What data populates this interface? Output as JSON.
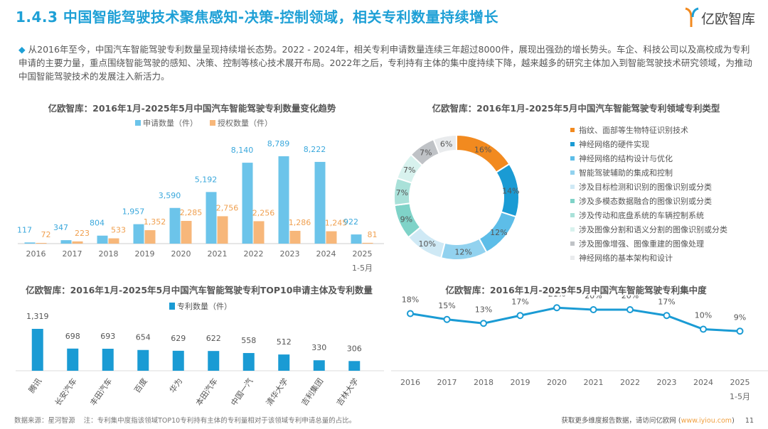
{
  "header": {
    "title": "1.4.3 中国智能驾驶技术聚焦感知-决策-控制领域，相关专利数量持续增长",
    "logo": "亿欧智库"
  },
  "intro": "从2016年至今，中国汽车智能驾驶专利数量呈现持续增长态势。2022 - 2024年，相关专利申请数量连续三年超过8000件，展现出强劲的增长势头。车企、科技公司以及高校成为专利申请的主要力量，重点围绕智能驾驶的感知、决策、控制等核心技术展开布局。2022年之后，专利持有主体的集中度持续下降，越来越多的研究主体加入到智能驾驶技术研究领域，为推动中国智能驾驶技术的发展注入新活力。",
  "chart_data": [
    {
      "type": "bar",
      "title": "亿欧智库：2016年1月-2025年5月中国汽车智能驾驶专利数量变化趋势",
      "categories": [
        "2016",
        "2017",
        "2018",
        "2019",
        "2020",
        "2021",
        "2022",
        "2023",
        "2024",
        "2025\n1-5月"
      ],
      "series": [
        {
          "name": "申请数量（件）",
          "color": "#6cc4ea",
          "values": [
            117,
            347,
            804,
            1957,
            3590,
            5192,
            8140,
            8789,
            8222,
            922
          ],
          "labels": [
            "117",
            "347",
            "804",
            "1,957",
            "3,590",
            "5,192",
            "8,140",
            "8,789",
            "8,222",
            "922"
          ]
        },
        {
          "name": "授权数量（件）",
          "color": "#f7b77a",
          "values": [
            72,
            223,
            533,
            1352,
            2285,
            2756,
            2256,
            1286,
            1245,
            81
          ],
          "labels": [
            "72",
            "223",
            "533",
            "1,352",
            "2,285",
            "2,756",
            "2,256",
            "1,286",
            "1,245",
            "81"
          ]
        }
      ],
      "legend": "top",
      "grid": false
    },
    {
      "type": "pie",
      "donut": true,
      "title": "亿欧智库：2016年1月-2025年5月中国汽车智能驾驶专利领域专利类型",
      "legend": "right",
      "slices": [
        {
          "label": "指纹、面部等生物特征识别技术",
          "value": 16,
          "color": "#f28a1f"
        },
        {
          "label": "神经网络的硬件实现",
          "value": 14,
          "color": "#1a9bd4"
        },
        {
          "label": "神经网络的结构设计与优化",
          "value": 12,
          "color": "#5dbde8"
        },
        {
          "label": "智能驾驶辅助的集成和控制",
          "value": 12,
          "color": "#92d2ef"
        },
        {
          "label": "涉及目标检测和识别的图像识别或分类",
          "value": 10,
          "color": "#cfe9f5"
        },
        {
          "label": "涉及多模态数据融合的图像识别或分类",
          "value": 9,
          "color": "#7fd3c8"
        },
        {
          "label": "涉及传动和底盘系统的车辆控制系统",
          "value": 7,
          "color": "#a9e1d9"
        },
        {
          "label": "涉及图像分割和语义分割的图像识别或分类",
          "value": 7,
          "color": "#d8f2ee"
        },
        {
          "label": "涉及图像增强、图像重建的图像处理",
          "value": 7,
          "color": "#bfc2c6"
        },
        {
          "label": "神经网络的基本架构和设计",
          "value": 6,
          "color": "#e9ebed"
        }
      ]
    },
    {
      "type": "bar",
      "title": "亿欧智库：2016年1月-2025年5月中国汽车智能驾驶专利TOP10申请主体及专利数量",
      "legend": "top",
      "categories": [
        "腾讯",
        "长安汽车",
        "丰田汽车",
        "百度",
        "华为",
        "本田汽车",
        "中国一汽",
        "清华大学",
        "吉利集团",
        "吉林大学"
      ],
      "series": [
        {
          "name": "专利数量（件）",
          "color": "#1a9bd4",
          "values": [
            1319,
            698,
            693,
            654,
            629,
            622,
            558,
            512,
            330,
            306
          ],
          "labels": [
            "1,319",
            "698",
            "693",
            "654",
            "629",
            "622",
            "558",
            "512",
            "330",
            "306"
          ]
        }
      ]
    },
    {
      "type": "line",
      "title": "亿欧智库：2016年1月-2025年5月中国汽车智能驾驶专利集中度",
      "categories": [
        "2016",
        "2017",
        "2018",
        "2019",
        "2020",
        "2021",
        "2022",
        "2023",
        "2024",
        "2025\n1-5月"
      ],
      "series": [
        {
          "color": "#1a9bd4",
          "values": [
            18,
            15,
            13,
            17,
            21,
            20,
            20,
            17,
            10,
            9
          ],
          "labels": [
            "18%",
            "15%",
            "13%",
            "17%",
            "21%",
            "20%",
            "20%",
            "17%",
            "10%",
            "9%"
          ]
        }
      ]
    }
  ],
  "footer": {
    "source": "数据来源：星河智源",
    "note": "注：专利集中度指该领域TOP10专利持有主体的专利量相对于该领域专利申请总量的占比。",
    "more": "获取更多维度报告数据，请访问亿欧网 (",
    "link": "www.iyiou.com",
    "close": ")",
    "page": "11"
  }
}
